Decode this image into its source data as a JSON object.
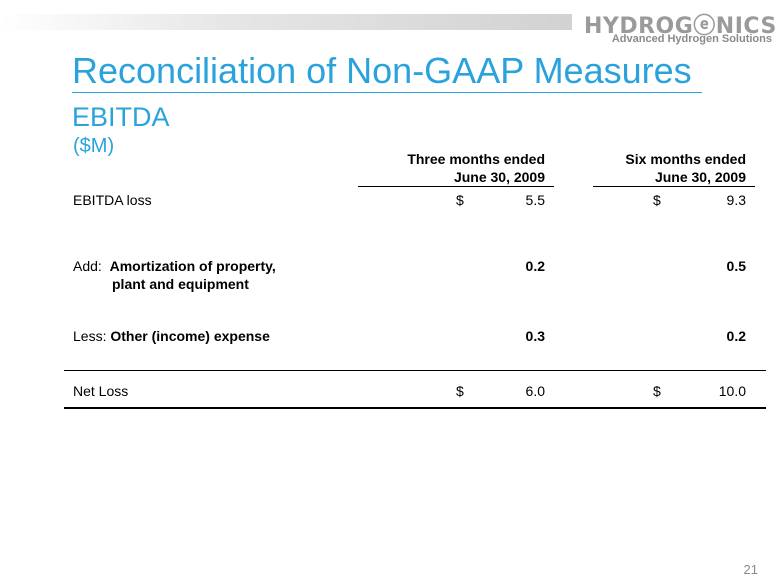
{
  "logo": {
    "wordmark": "HYDROGⓔNICS",
    "tagline": "Advanced Hydrogen Solutions"
  },
  "header": {
    "title": "Reconciliation of Non-GAAP Measures",
    "subtitle": "EBITDA",
    "unit": "($M)"
  },
  "table": {
    "columns": [
      {
        "line1": "Three months ended",
        "line2": "June 30, 2009"
      },
      {
        "line1": "Six months ended",
        "line2": "June 30, 2009"
      }
    ],
    "rows": [
      {
        "prefix": "",
        "label": "EBITDA  loss",
        "label2": "",
        "c1_dollar": "$",
        "c1": "5.5",
        "c2_dollar": "$",
        "c2": "9.3"
      },
      {
        "prefix": "Add:  ",
        "label": "Amortization of property,",
        "label2": "plant and equipment",
        "c1_dollar": "",
        "c1": "0.2",
        "c2_dollar": "",
        "c2": "0.5"
      },
      {
        "prefix": "Less: ",
        "label": "Other (income) expense",
        "label2": "",
        "c1_dollar": "",
        "c1": "0.3",
        "c2_dollar": "",
        "c2": "0.2"
      },
      {
        "prefix": "",
        "label": "Net Loss",
        "label2": "",
        "c1_dollar": "$",
        "c1": "6.0",
        "c2_dollar": "$",
        "c2": "10.0"
      }
    ]
  },
  "footer": {
    "page_number": "21"
  },
  "colors": {
    "accent": "#2aa3dc",
    "logo_grey": "#9a9a9a"
  }
}
